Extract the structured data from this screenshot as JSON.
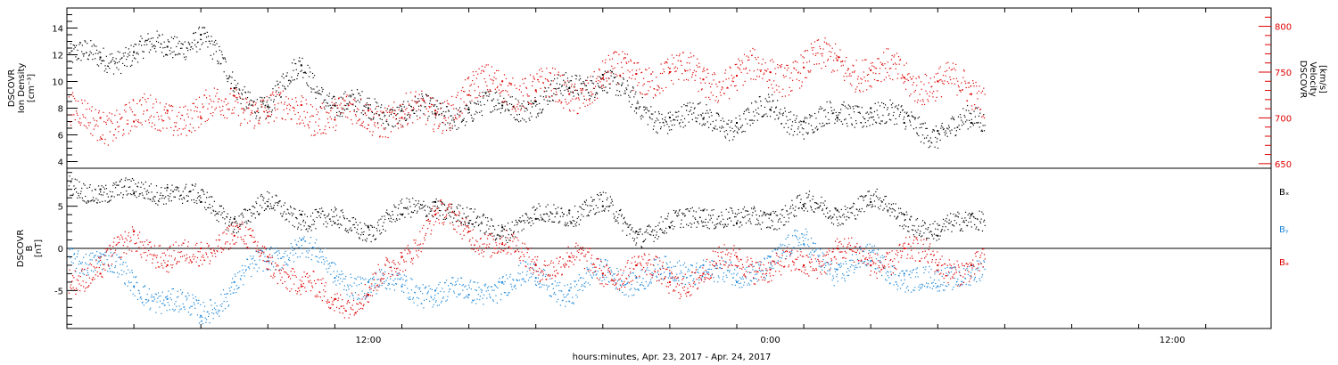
{
  "chart_data": {
    "type": "scatter",
    "xlabel": "hours:minutes, Apr. 23, 2017 - Apr. 24, 2017",
    "x_ticks": [
      "12:00",
      "0:00",
      "12:00"
    ],
    "panels": [
      {
        "ylabel_lines": [
          "DSCOVR",
          "Ion Density",
          "[cm⁻³]"
        ],
        "ylim": [
          3.5,
          15.5
        ],
        "yticks": [
          4,
          6,
          8,
          10,
          12,
          14
        ],
        "y2label_lines": [
          "DSCOVR",
          "Velocity",
          "[km/s]"
        ],
        "y2lim": [
          645,
          820
        ],
        "y2ticks": [
          650,
          700,
          750,
          800
        ],
        "series": [
          {
            "axis": "left",
            "color": "#000000",
            "x_hours": [
              1,
              2,
              3,
              4,
              5,
              6,
              7,
              8,
              9,
              10,
              11,
              12,
              13,
              14,
              15,
              16,
              17,
              18,
              19,
              20,
              21,
              22,
              23,
              24,
              25,
              26,
              27
            ],
            "values": [
              11.8,
              12.2,
              12.6,
              13.5,
              9.5,
              8.1,
              11.2,
              8.2,
              8.0,
              7.8,
              7.6,
              7.9,
              8.2,
              8.5,
              9.5,
              10.5,
              8.0,
              7.3,
              7.2,
              6.9,
              7.9,
              7.0,
              7.3,
              8.0,
              6.9,
              6.3,
              6.9
            ]
          },
          {
            "axis": "right",
            "color": "#dd0000",
            "x_hours": [
              1,
              2,
              3,
              4,
              5,
              6,
              7,
              8,
              9,
              10,
              11,
              12,
              13,
              14,
              15,
              16,
              17,
              18,
              19,
              20,
              21,
              22,
              23,
              24,
              25,
              26,
              27
            ],
            "values": [
              700,
              696,
              708,
              700,
              724,
              702,
              714,
              698,
              708,
              700,
              708,
              725,
              740,
              730,
              726,
              743,
              748,
              750,
              742,
              746,
              750,
              755,
              763,
              752,
              744,
              740,
              726
            ]
          }
        ]
      },
      {
        "ylabel_lines": [
          "DSCOVR",
          "B",
          "[nT]"
        ],
        "ylim": [
          -9.5,
          9.5
        ],
        "yticks": [
          -5,
          0,
          5
        ],
        "zero_line": true,
        "series": [
          {
            "name": "Bₓ",
            "color": "#000000",
            "x_hours": [
              1,
              2,
              3,
              4,
              5,
              6,
              7,
              8,
              9,
              10,
              11,
              12,
              13,
              14,
              15,
              16,
              17,
              18,
              19,
              20,
              21,
              22,
              23,
              24,
              25,
              26,
              27
            ],
            "values": [
              7.0,
              6.5,
              7.2,
              5.5,
              3.5,
              5.0,
              4.0,
              3.0,
              2.5,
              4.0,
              5.5,
              3.0,
              2.5,
              3.5,
              4.5,
              5.0,
              2.0,
              2.5,
              4.5,
              3.0,
              4.0,
              5.0,
              4.5,
              5.5,
              4.0,
              1.5,
              4.0
            ]
          },
          {
            "name": "Bᵧ",
            "color": "#1a86d8",
            "x_hours": [
              1,
              2,
              3,
              4,
              5,
              6,
              7,
              8,
              9,
              10,
              11,
              12,
              13,
              14,
              15,
              16,
              17,
              18,
              19,
              20,
              21,
              22,
              23,
              24,
              25,
              26,
              27
            ],
            "values": [
              -1.0,
              -4.5,
              -6.0,
              -8.0,
              -4.0,
              -1.5,
              1.0,
              -3.5,
              -4.0,
              -4.5,
              -5.0,
              -5.5,
              -4.0,
              -3.5,
              -5.0,
              -3.0,
              -3.5,
              -3.0,
              -2.0,
              -4.0,
              -1.0,
              0.5,
              -2.5,
              -1.5,
              -3.0,
              -4.5,
              -2.0
            ]
          },
          {
            "name": "Bₔ",
            "color": "#dd0000",
            "x_hours": [
              1,
              2,
              3,
              4,
              5,
              6,
              7,
              8,
              9,
              10,
              11,
              12,
              13,
              14,
              15,
              16,
              17,
              18,
              19,
              20,
              21,
              22,
              23,
              24,
              25,
              26,
              27
            ],
            "values": [
              -3.0,
              2.0,
              -2.0,
              0.0,
              1.5,
              -1.0,
              -4.5,
              -6.0,
              -5.5,
              -1.0,
              4.0,
              2.0,
              0.5,
              -2.0,
              -1.0,
              -3.0,
              -2.0,
              -4.0,
              -3.0,
              -1.0,
              -2.5,
              -2.0,
              0.0,
              -2.0,
              0.0,
              -2.0,
              -2.0
            ]
          }
        ]
      }
    ]
  }
}
